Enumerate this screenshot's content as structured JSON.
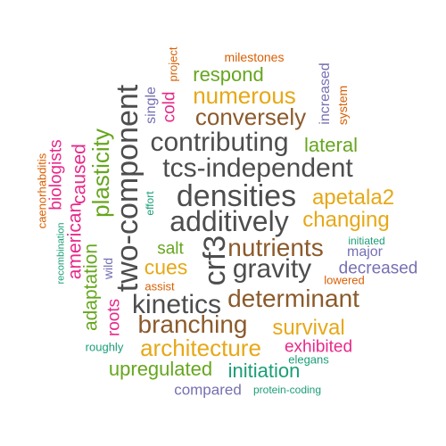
{
  "palette": {
    "dark_gray": "#4d4d4d",
    "gold": "#e6a817",
    "brown": "#8b5a2b",
    "olive_green": "#66a61e",
    "magenta": "#e7298a",
    "purple": "#7570b3",
    "orange": "#d95f02",
    "teal": "#1b9e77"
  },
  "words": [
    {
      "text": "milestones",
      "color": "#d95f02"
    },
    {
      "text": "project",
      "color": "#d95f02"
    },
    {
      "text": "respond",
      "color": "#66a61e"
    },
    {
      "text": "increased",
      "color": "#7570b3"
    },
    {
      "text": "system",
      "color": "#d95f02"
    },
    {
      "text": "single",
      "color": "#7570b3"
    },
    {
      "text": "cold",
      "color": "#e7298a"
    },
    {
      "text": "numerous",
      "color": "#e6a817"
    },
    {
      "text": "conversely",
      "color": "#8b5a2b"
    },
    {
      "text": "contributing",
      "color": "#4d4d4d"
    },
    {
      "text": "lateral",
      "color": "#66a61e"
    },
    {
      "text": "two-component",
      "color": "#4d4d4d"
    },
    {
      "text": "tcs-independent",
      "color": "#4d4d4d"
    },
    {
      "text": "plasticity",
      "color": "#66a61e"
    },
    {
      "text": "caused",
      "color": "#e7298a"
    },
    {
      "text": "biologists",
      "color": "#e7298a"
    },
    {
      "text": "caenorhabditis",
      "color": "#d95f02"
    },
    {
      "text": "densities",
      "color": "#4d4d4d"
    },
    {
      "text": "apetala2",
      "color": "#e6a817"
    },
    {
      "text": "effort",
      "color": "#1b9e77"
    },
    {
      "text": "additively",
      "color": "#4d4d4d"
    },
    {
      "text": "changing",
      "color": "#e6a817"
    },
    {
      "text": "american",
      "color": "#e7298a"
    },
    {
      "text": "recombination",
      "color": "#1b9e77"
    },
    {
      "text": "salt",
      "color": "#66a61e"
    },
    {
      "text": "crf3",
      "color": "#4d4d4d"
    },
    {
      "text": "nutrients",
      "color": "#8b5a2b"
    },
    {
      "text": "initiated",
      "color": "#1b9e77"
    },
    {
      "text": "major",
      "color": "#7570b3"
    },
    {
      "text": "cues",
      "color": "#e6a817"
    },
    {
      "text": "gravity",
      "color": "#4d4d4d"
    },
    {
      "text": "decreased",
      "color": "#7570b3"
    },
    {
      "text": "wild",
      "color": "#7570b3"
    },
    {
      "text": "adaptation",
      "color": "#66a61e"
    },
    {
      "text": "assist",
      "color": "#d95f02"
    },
    {
      "text": "lowered",
      "color": "#d95f02"
    },
    {
      "text": "determinant",
      "color": "#8b5a2b"
    },
    {
      "text": "kinetics",
      "color": "#4d4d4d"
    },
    {
      "text": "roots",
      "color": "#e7298a"
    },
    {
      "text": "branching",
      "color": "#8b5a2b"
    },
    {
      "text": "survival",
      "color": "#e6a817"
    },
    {
      "text": "architecture",
      "color": "#e6a817"
    },
    {
      "text": "exhibited",
      "color": "#e7298a"
    },
    {
      "text": "roughly",
      "color": "#1b9e77"
    },
    {
      "text": "elegans",
      "color": "#1b9e77"
    },
    {
      "text": "upregulated",
      "color": "#66a61e"
    },
    {
      "text": "initiation",
      "color": "#1b9e77"
    },
    {
      "text": "compared",
      "color": "#7570b3"
    },
    {
      "text": "protein-coding",
      "color": "#1b9e77"
    }
  ]
}
